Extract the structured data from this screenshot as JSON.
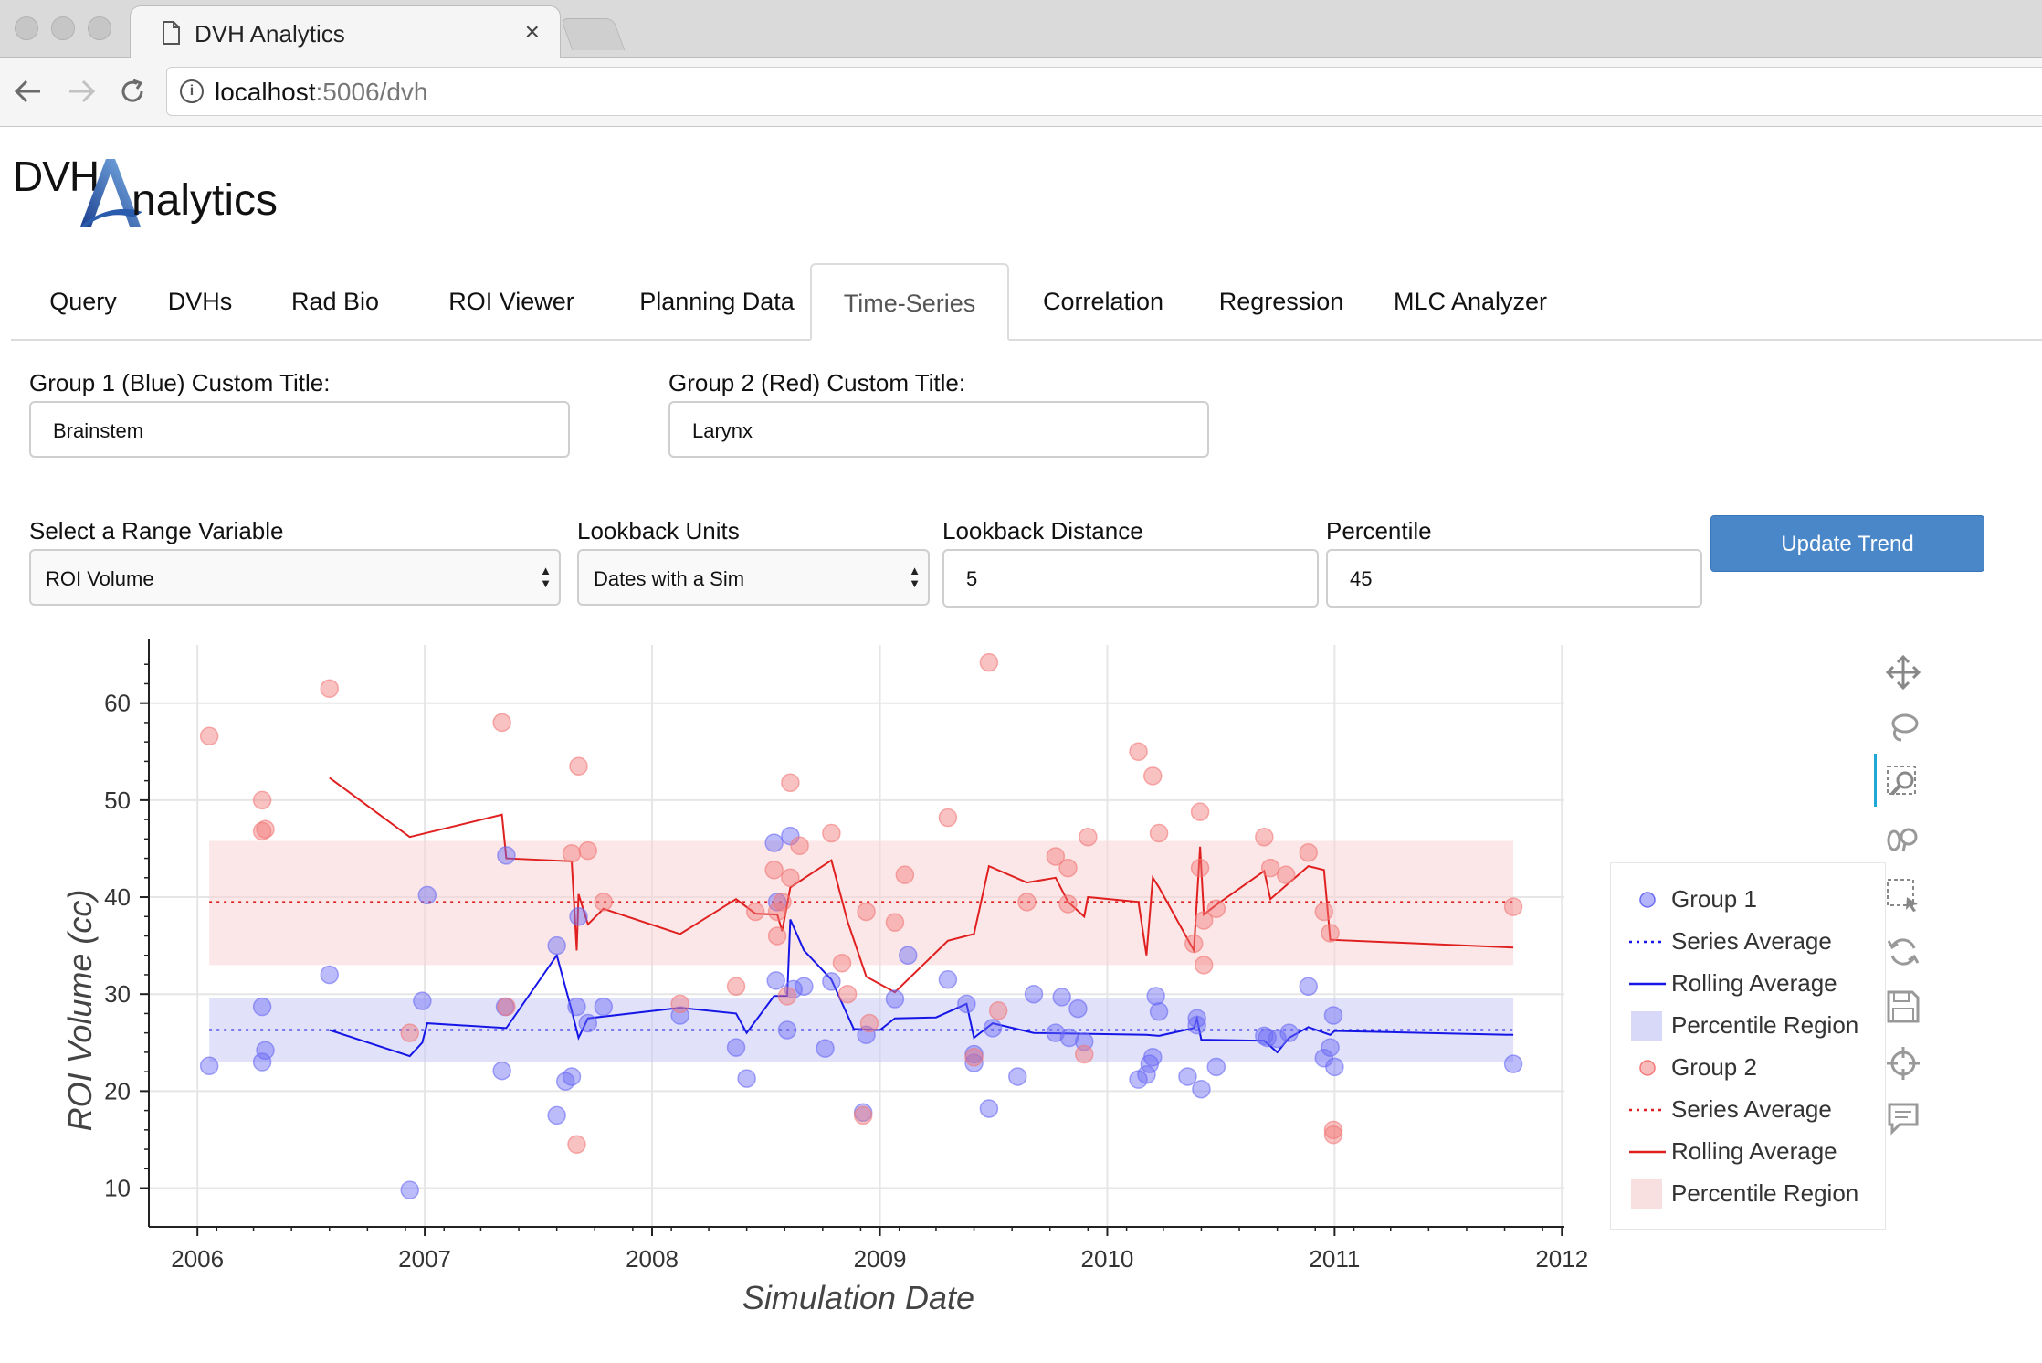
{
  "browser": {
    "tab_title": "DVH Analytics",
    "close_glyph": "×",
    "url_host": "localhost",
    "url_rest": ":5006/dvh",
    "icons": [
      "document-icon",
      "back-icon",
      "forward-icon",
      "reload-icon",
      "info-icon"
    ]
  },
  "logo": {
    "part1": "DVH",
    "part2": "nalytics"
  },
  "app_tabs": [
    "Query",
    "DVHs",
    "Rad Bio",
    "ROI Viewer",
    "Planning Data",
    "Time-Series",
    "Correlation",
    "Regression",
    "MLC Analyzer"
  ],
  "active_tab": "Time-Series",
  "form": {
    "group1_title_label": "Group 1 (Blue) Custom Title:",
    "group1_title_value": "Brainstem",
    "group2_title_label": "Group 2 (Red) Custom Title:",
    "group2_title_value": "Larynx",
    "range_variable_label": "Select a Range Variable",
    "range_variable_value": "ROI Volume",
    "lookback_units_label": "Lookback Units",
    "lookback_units_value": "Dates with a Sim",
    "lookback_distance_label": "Lookback Distance",
    "lookback_distance_value": "5",
    "percentile_label": "Percentile",
    "percentile_value": "45",
    "update_button": "Update Trend"
  },
  "plot_tools": [
    "pan-icon",
    "lasso-select-icon",
    "box-zoom-icon",
    "wheel-zoom-icon",
    "box-select-icon",
    "reset-icon",
    "save-icon",
    "crosshair-icon",
    "hover-icon"
  ],
  "legend": [
    {
      "label": "Group 1",
      "kind": "circle",
      "color": "#6a6af5"
    },
    {
      "label": "Series Average",
      "kind": "dotted",
      "color": "#1616e6"
    },
    {
      "label": "Rolling Average",
      "kind": "line",
      "color": "#1616e6"
    },
    {
      "label": "Percentile Region",
      "kind": "box",
      "color": "#c8c8f5"
    },
    {
      "label": "Group 2",
      "kind": "circle",
      "color": "#f27878"
    },
    {
      "label": "Series Average",
      "kind": "dotted",
      "color": "#e02020"
    },
    {
      "label": "Rolling Average",
      "kind": "line",
      "color": "#e02020"
    },
    {
      "label": "Percentile Region",
      "kind": "box",
      "color": "#f7d3d3"
    }
  ],
  "chart_data": {
    "type": "scatter",
    "xlabel": "Simulation Date",
    "ylabel": "ROI Volume (cc)",
    "xlim": [
      "2005-10-15",
      "2012-01-05"
    ],
    "ylim": [
      6,
      66
    ],
    "x_ticks": [
      "2006",
      "2007",
      "2008",
      "2009",
      "2010",
      "2011",
      "2012"
    ],
    "y_ticks": [
      10,
      20,
      30,
      40,
      50,
      60
    ],
    "grid": true,
    "legend_position": "right",
    "series": [
      {
        "name": "Group 1",
        "color": "#6a6af5",
        "series_average": 26.3,
        "percentile_region": [
          23.0,
          29.6
        ],
        "points": [
          [
            "2006-01-20",
            22.6
          ],
          [
            "2006-04-15",
            23.0
          ],
          [
            "2006-04-15",
            28.7
          ],
          [
            "2006-04-20",
            24.2
          ],
          [
            "2006-08-01",
            32.0
          ],
          [
            "2006-12-08",
            9.8
          ],
          [
            "2006-12-28",
            29.3
          ],
          [
            "2007-01-05",
            40.2
          ],
          [
            "2007-05-05",
            22.1
          ],
          [
            "2007-05-10",
            28.7
          ],
          [
            "2007-05-12",
            44.3
          ],
          [
            "2007-08-01",
            35.0
          ],
          [
            "2007-08-01",
            17.5
          ],
          [
            "2007-08-15",
            21.0
          ],
          [
            "2007-08-25",
            21.5
          ],
          [
            "2007-09-02",
            28.7
          ],
          [
            "2007-09-05",
            38.0
          ],
          [
            "2007-09-20",
            27.0
          ],
          [
            "2007-10-15",
            28.7
          ],
          [
            "2008-02-15",
            27.8
          ],
          [
            "2008-05-15",
            24.5
          ],
          [
            "2008-06-01",
            21.3
          ],
          [
            "2008-07-15",
            45.6
          ],
          [
            "2008-07-18",
            31.4
          ],
          [
            "2008-07-20",
            39.5
          ],
          [
            "2008-08-05",
            26.3
          ],
          [
            "2008-08-10",
            46.3
          ],
          [
            "2008-08-15",
            30.5
          ],
          [
            "2008-09-01",
            30.8
          ],
          [
            "2008-10-05",
            24.4
          ],
          [
            "2008-10-15",
            31.3
          ],
          [
            "2008-12-05",
            17.8
          ],
          [
            "2008-12-10",
            25.8
          ],
          [
            "2009-01-25",
            29.5
          ],
          [
            "2009-02-15",
            34.0
          ],
          [
            "2009-04-20",
            31.5
          ],
          [
            "2009-05-20",
            29.0
          ],
          [
            "2009-06-01",
            22.9
          ],
          [
            "2009-06-01",
            23.8
          ],
          [
            "2009-06-25",
            18.2
          ],
          [
            "2009-07-01",
            26.5
          ],
          [
            "2009-08-10",
            21.5
          ],
          [
            "2009-09-05",
            30.0
          ],
          [
            "2009-10-10",
            26.0
          ],
          [
            "2009-10-20",
            29.7
          ],
          [
            "2009-11-01",
            25.5
          ],
          [
            "2009-11-15",
            28.5
          ],
          [
            "2009-11-25",
            25.1
          ],
          [
            "2010-02-20",
            21.2
          ],
          [
            "2010-03-05",
            21.7
          ],
          [
            "2010-03-10",
            22.8
          ],
          [
            "2010-03-15",
            23.5
          ],
          [
            "2010-03-20",
            29.8
          ],
          [
            "2010-03-25",
            28.2
          ],
          [
            "2010-05-10",
            21.5
          ],
          [
            "2010-05-25",
            27.5
          ],
          [
            "2010-05-25",
            26.8
          ],
          [
            "2010-06-01",
            20.2
          ],
          [
            "2010-06-25",
            22.5
          ],
          [
            "2010-09-10",
            25.7
          ],
          [
            "2010-09-15",
            25.5
          ],
          [
            "2010-10-01",
            25.4
          ],
          [
            "2010-10-20",
            26.0
          ],
          [
            "2010-11-20",
            30.8
          ],
          [
            "2010-12-15",
            23.4
          ],
          [
            "2010-12-25",
            24.5
          ],
          [
            "2010-12-30",
            27.8
          ],
          [
            "2011-01-01",
            22.5
          ],
          [
            "2011-10-15",
            22.8
          ]
        ],
        "rolling_average": [
          [
            "2006-08-01",
            26.3
          ],
          [
            "2006-12-08",
            23.6
          ],
          [
            "2006-12-28",
            25.0
          ],
          [
            "2007-01-05",
            27.0
          ],
          [
            "2007-05-12",
            26.5
          ],
          [
            "2007-08-01",
            34.0
          ],
          [
            "2007-08-25",
            28.3
          ],
          [
            "2007-09-05",
            25.5
          ],
          [
            "2007-09-20",
            27.5
          ],
          [
            "2008-02-15",
            28.6
          ],
          [
            "2008-05-15",
            28.0
          ],
          [
            "2008-06-01",
            26.0
          ],
          [
            "2008-07-15",
            29.8
          ],
          [
            "2008-08-05",
            29.8
          ],
          [
            "2008-08-10",
            37.7
          ],
          [
            "2008-09-01",
            34.5
          ],
          [
            "2008-10-15",
            31.5
          ],
          [
            "2008-11-20",
            26.4
          ],
          [
            "2009-01-01",
            26.3
          ],
          [
            "2009-01-25",
            27.5
          ],
          [
            "2009-04-01",
            27.6
          ],
          [
            "2009-05-20",
            29.0
          ],
          [
            "2009-06-01",
            25.5
          ],
          [
            "2009-07-01",
            27.0
          ],
          [
            "2009-09-05",
            26.0
          ],
          [
            "2010-03-05",
            25.8
          ],
          [
            "2010-03-25",
            25.7
          ],
          [
            "2010-05-20",
            26.5
          ],
          [
            "2010-05-25",
            27.5
          ],
          [
            "2010-06-01",
            25.3
          ],
          [
            "2010-09-10",
            25.2
          ],
          [
            "2010-10-01",
            24.0
          ],
          [
            "2010-10-20",
            25.5
          ],
          [
            "2010-11-20",
            26.6
          ],
          [
            "2010-12-25",
            25.8
          ],
          [
            "2011-01-01",
            26.2
          ],
          [
            "2011-10-15",
            25.8
          ]
        ]
      },
      {
        "name": "Group 2",
        "color": "#f27878",
        "series_average": 39.5,
        "percentile_region": [
          33.0,
          45.8
        ],
        "points": [
          [
            "2006-01-20",
            56.6
          ],
          [
            "2006-04-15",
            50.0
          ],
          [
            "2006-04-15",
            46.8
          ],
          [
            "2006-04-20",
            47.0
          ],
          [
            "2006-08-01",
            61.5
          ],
          [
            "2006-12-08",
            26.0
          ],
          [
            "2007-05-05",
            58.0
          ],
          [
            "2007-05-12",
            28.7
          ],
          [
            "2007-08-25",
            44.5
          ],
          [
            "2007-09-02",
            14.5
          ],
          [
            "2007-09-05",
            53.5
          ],
          [
            "2007-09-20",
            44.8
          ],
          [
            "2007-10-15",
            39.5
          ],
          [
            "2008-02-15",
            29.0
          ],
          [
            "2008-05-15",
            30.8
          ],
          [
            "2008-06-15",
            38.5
          ],
          [
            "2008-07-15",
            42.8
          ],
          [
            "2008-07-20",
            36.0
          ],
          [
            "2008-07-20",
            38.5
          ],
          [
            "2008-07-28",
            39.5
          ],
          [
            "2008-08-05",
            29.8
          ],
          [
            "2008-08-10",
            51.8
          ],
          [
            "2008-08-10",
            42.0
          ],
          [
            "2008-08-25",
            45.3
          ],
          [
            "2008-10-15",
            46.6
          ],
          [
            "2008-11-01",
            33.2
          ],
          [
            "2008-11-10",
            30.0
          ],
          [
            "2008-12-05",
            17.5
          ],
          [
            "2008-12-10",
            38.5
          ],
          [
            "2008-12-15",
            27.0
          ],
          [
            "2009-01-25",
            37.4
          ],
          [
            "2009-02-10",
            42.3
          ],
          [
            "2009-04-20",
            48.2
          ],
          [
            "2009-06-01",
            23.5
          ],
          [
            "2009-06-25",
            64.2
          ],
          [
            "2009-07-10",
            28.3
          ],
          [
            "2009-08-25",
            39.5
          ],
          [
            "2009-10-10",
            44.2
          ],
          [
            "2009-10-30",
            43.0
          ],
          [
            "2009-10-30",
            39.3
          ],
          [
            "2009-11-25",
            23.8
          ],
          [
            "2009-12-01",
            46.2
          ],
          [
            "2010-02-20",
            55.0
          ],
          [
            "2010-03-15",
            52.5
          ],
          [
            "2010-03-25",
            46.6
          ],
          [
            "2010-05-20",
            35.2
          ],
          [
            "2010-05-30",
            48.8
          ],
          [
            "2010-05-30",
            43.0
          ],
          [
            "2010-06-05",
            33.0
          ],
          [
            "2010-06-05",
            37.6
          ],
          [
            "2010-06-25",
            38.8
          ],
          [
            "2010-09-10",
            46.2
          ],
          [
            "2010-09-20",
            43.0
          ],
          [
            "2010-10-15",
            42.3
          ],
          [
            "2010-11-20",
            44.6
          ],
          [
            "2010-12-15",
            38.5
          ],
          [
            "2010-12-25",
            36.3
          ],
          [
            "2010-12-30",
            16.0
          ],
          [
            "2010-12-30",
            15.5
          ],
          [
            "2011-10-15",
            39.0
          ]
        ],
        "rolling_average": [
          [
            "2006-08-01",
            52.3
          ],
          [
            "2006-12-08",
            46.2
          ],
          [
            "2007-05-05",
            48.5
          ],
          [
            "2007-05-12",
            44.0
          ],
          [
            "2007-08-25",
            43.7
          ],
          [
            "2007-09-02",
            34.5
          ],
          [
            "2007-09-05",
            40.3
          ],
          [
            "2007-09-20",
            37.2
          ],
          [
            "2007-10-15",
            38.8
          ],
          [
            "2008-02-15",
            36.2
          ],
          [
            "2008-05-15",
            39.8
          ],
          [
            "2008-06-15",
            38.3
          ],
          [
            "2008-07-20",
            38.2
          ],
          [
            "2008-07-28",
            36.5
          ],
          [
            "2008-08-10",
            41.0
          ],
          [
            "2008-10-15",
            43.8
          ],
          [
            "2008-11-10",
            37.5
          ],
          [
            "2008-12-10",
            31.8
          ],
          [
            "2009-01-25",
            30.2
          ],
          [
            "2009-04-20",
            35.5
          ],
          [
            "2009-06-01",
            36.2
          ],
          [
            "2009-06-25",
            43.2
          ],
          [
            "2009-08-25",
            41.5
          ],
          [
            "2009-10-10",
            42.0
          ],
          [
            "2009-10-30",
            39.5
          ],
          [
            "2009-11-25",
            38.0
          ],
          [
            "2009-12-01",
            40.0
          ],
          [
            "2010-02-20",
            39.5
          ],
          [
            "2010-03-05",
            34.0
          ],
          [
            "2010-03-15",
            42.0
          ],
          [
            "2010-03-25",
            41.0
          ],
          [
            "2010-05-20",
            34.5
          ],
          [
            "2010-05-30",
            45.2
          ],
          [
            "2010-06-05",
            38.2
          ],
          [
            "2010-06-25",
            39.2
          ],
          [
            "2010-09-10",
            42.7
          ],
          [
            "2010-09-20",
            39.8
          ],
          [
            "2010-11-20",
            43.2
          ],
          [
            "2010-12-15",
            42.8
          ],
          [
            "2010-12-25",
            35.6
          ],
          [
            "2011-10-15",
            34.8
          ]
        ]
      }
    ]
  }
}
